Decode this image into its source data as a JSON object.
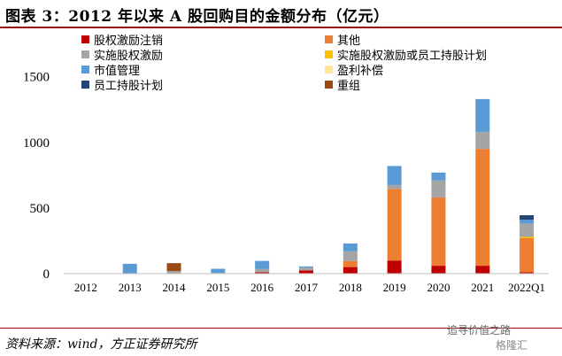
{
  "title": "图表 3：2012 年以来 A 股回购目的金额分布（亿元）",
  "source": "资料来源：wind，方正证券研究所",
  "watermark": "追寻价值之路",
  "watermark2": "格隆汇",
  "chart_data": {
    "type": "bar",
    "stacked": true,
    "categories": [
      "2012",
      "2013",
      "2014",
      "2015",
      "2016",
      "2017",
      "2018",
      "2019",
      "2020",
      "2021",
      "2022Q1"
    ],
    "ylim": [
      0,
      1700
    ],
    "yticks": [
      0,
      500,
      1000,
      1500
    ],
    "series": [
      {
        "name": "股权激励注销",
        "color": "#c00000",
        "values": [
          0,
          0,
          0,
          0,
          10,
          25,
          50,
          100,
          60,
          60,
          10
        ]
      },
      {
        "name": "实施股权激励",
        "color": "#a5a5a5",
        "values": [
          0,
          0,
          20,
          5,
          25,
          20,
          75,
          30,
          130,
          130,
          100
        ]
      },
      {
        "name": "市值管理",
        "color": "#5b9bd5",
        "values": [
          3,
          75,
          0,
          32,
          62,
          10,
          60,
          145,
          60,
          250,
          30
        ]
      },
      {
        "name": "员工持股计划",
        "color": "#264478",
        "values": [
          0,
          0,
          0,
          0,
          0,
          0,
          0,
          0,
          0,
          0,
          35
        ]
      },
      {
        "name": "其他",
        "color": "#ed7d31",
        "values": [
          0,
          0,
          0,
          0,
          0,
          0,
          45,
          545,
          520,
          890,
          260
        ]
      },
      {
        "name": "实施股权激励或员工持股计划",
        "color": "#ffc000",
        "values": [
          0,
          0,
          0,
          0,
          0,
          0,
          0,
          0,
          0,
          0,
          10
        ]
      },
      {
        "name": "盈利补偿",
        "color": "#ffe699",
        "values": [
          0,
          0,
          0,
          0,
          0,
          0,
          0,
          0,
          0,
          0,
          0
        ]
      },
      {
        "name": "重组",
        "color": "#9c4a13",
        "values": [
          0,
          0,
          60,
          0,
          0,
          0,
          0,
          0,
          0,
          0,
          0
        ]
      }
    ],
    "stack_order": [
      "股权激励注销",
      "其他",
      "实施股权激励或员工持股计划",
      "实施股权激励",
      "盈利补偿",
      "市值管理",
      "员工持股计划",
      "重组"
    ],
    "legend_order": [
      [
        "股权激励注销",
        "其他"
      ],
      [
        "实施股权激励",
        "实施股权激励或员工持股计划"
      ],
      [
        "市值管理",
        "盈利补偿"
      ],
      [
        "员工持股计划",
        "重组"
      ]
    ],
    "legend_position": "top-left",
    "grid": false
  }
}
